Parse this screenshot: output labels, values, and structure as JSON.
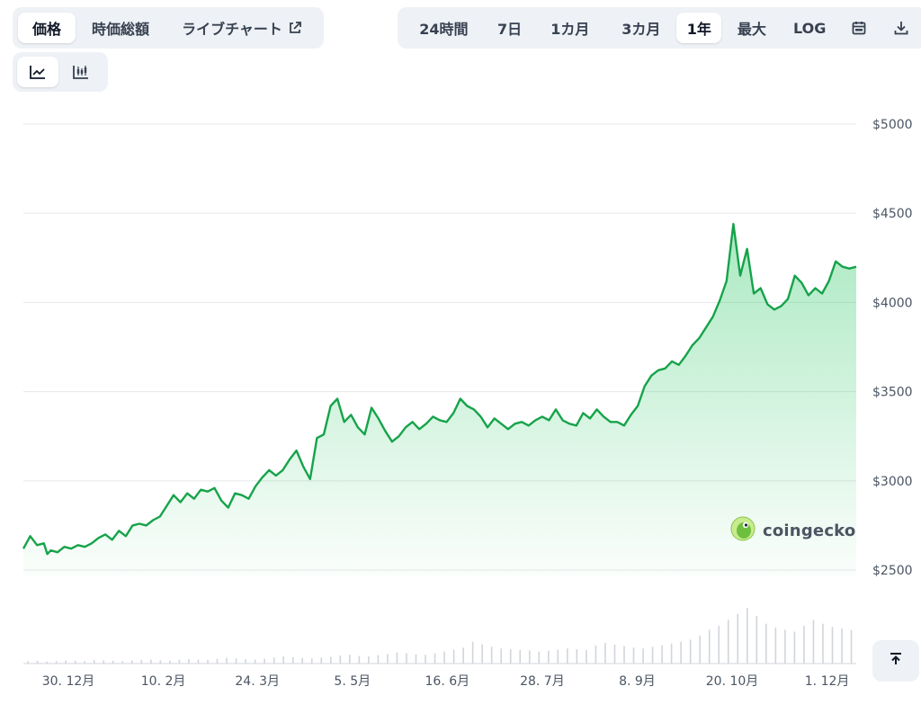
{
  "tabs": [
    {
      "label": "価格",
      "active": true
    },
    {
      "label": "時価総額",
      "active": false
    },
    {
      "label": "ライブチャート",
      "active": false
    }
  ],
  "ranges": [
    {
      "label": "24時間",
      "active": false
    },
    {
      "label": "7日",
      "active": false
    },
    {
      "label": "1カ月",
      "active": false
    },
    {
      "label": "3カ月",
      "active": false
    },
    {
      "label": "1年",
      "active": true
    },
    {
      "label": "最大",
      "active": false
    },
    {
      "label": "LOG",
      "active": false
    }
  ],
  "icons": {
    "external": "external-link-icon",
    "calendar": "calendar-icon",
    "download": "download-icon",
    "line": "line-chart-icon",
    "candle": "candlestick-icon",
    "scroll_top": "scroll-to-top-icon",
    "logo": "coingecko-logo-icon"
  },
  "watermark": "coingecko",
  "colors": {
    "line": "#16a34a",
    "fill": "#22c55e",
    "volume": "#d1d5db",
    "grid": "#e5e7eb"
  },
  "chart_data": {
    "type": "area",
    "title": "",
    "xlabel": "",
    "ylabel": "",
    "y_tick_labels": [
      "$2500",
      "$3000",
      "$3500",
      "$4000",
      "$4500",
      "$5000"
    ],
    "y_ticks": [
      2500,
      3000,
      3500,
      4000,
      4500,
      5000
    ],
    "ylim": [
      2470,
      5040
    ],
    "x_tick_labels": [
      "30. 12月",
      "10. 2月",
      "24. 3月",
      "5. 5月",
      "16. 6月",
      "28. 7月",
      "8. 9月",
      "20. 10月",
      "1. 12月"
    ],
    "x_tick_positions": [
      0.054,
      0.168,
      0.281,
      0.395,
      0.509,
      0.623,
      0.737,
      0.851,
      0.965
    ],
    "grid": true,
    "legend": "none",
    "series": [
      {
        "values": [
          [
            0,
            2620
          ],
          [
            0.01,
            2690
          ],
          [
            0.02,
            2640
          ],
          [
            0.03,
            2650
          ],
          [
            0.035,
            2590
          ],
          [
            0.04,
            2610
          ],
          [
            0.05,
            2600
          ],
          [
            0.06,
            2630
          ],
          [
            0.07,
            2620
          ],
          [
            0.08,
            2640
          ],
          [
            0.09,
            2630
          ],
          [
            0.1,
            2650
          ],
          [
            0.11,
            2680
          ],
          [
            0.12,
            2700
          ],
          [
            0.13,
            2670
          ],
          [
            0.14,
            2720
          ],
          [
            0.15,
            2690
          ],
          [
            0.16,
            2750
          ],
          [
            0.17,
            2760
          ],
          [
            0.18,
            2750
          ],
          [
            0.19,
            2780
          ],
          [
            0.2,
            2800
          ],
          [
            0.21,
            2860
          ],
          [
            0.22,
            2920
          ],
          [
            0.23,
            2880
          ],
          [
            0.24,
            2930
          ],
          [
            0.25,
            2900
          ],
          [
            0.26,
            2950
          ],
          [
            0.27,
            2940
          ],
          [
            0.28,
            2960
          ],
          [
            0.29,
            2890
          ],
          [
            0.3,
            2850
          ],
          [
            0.31,
            2930
          ],
          [
            0.32,
            2920
          ],
          [
            0.33,
            2900
          ],
          [
            0.34,
            2970
          ],
          [
            0.35,
            3020
          ],
          [
            0.36,
            3060
          ],
          [
            0.37,
            3030
          ],
          [
            0.38,
            3060
          ],
          [
            0.39,
            3120
          ],
          [
            0.4,
            3170
          ],
          [
            0.41,
            3080
          ],
          [
            0.42,
            3010
          ],
          [
            0.43,
            3240
          ],
          [
            0.44,
            3260
          ],
          [
            0.45,
            3420
          ],
          [
            0.46,
            3460
          ],
          [
            0.47,
            3330
          ],
          [
            0.48,
            3370
          ],
          [
            0.49,
            3300
          ],
          [
            0.5,
            3260
          ],
          [
            0.51,
            3410
          ],
          [
            0.52,
            3350
          ],
          [
            0.53,
            3280
          ],
          [
            0.54,
            3220
          ],
          [
            0.55,
            3250
          ],
          [
            0.56,
            3300
          ],
          [
            0.57,
            3330
          ],
          [
            0.58,
            3290
          ],
          [
            0.59,
            3320
          ],
          [
            0.6,
            3360
          ],
          [
            0.61,
            3340
          ],
          [
            0.62,
            3330
          ],
          [
            0.63,
            3380
          ],
          [
            0.64,
            3460
          ],
          [
            0.65,
            3420
          ],
          [
            0.66,
            3400
          ],
          [
            0.67,
            3360
          ],
          [
            0.68,
            3300
          ],
          [
            0.69,
            3350
          ],
          [
            0.7,
            3320
          ],
          [
            0.71,
            3290
          ],
          [
            0.72,
            3320
          ],
          [
            0.73,
            3330
          ],
          [
            0.74,
            3310
          ],
          [
            0.75,
            3340
          ],
          [
            0.76,
            3360
          ],
          [
            0.77,
            3340
          ],
          [
            0.78,
            3400
          ],
          [
            0.79,
            3340
          ],
          [
            0.8,
            3320
          ],
          [
            0.81,
            3310
          ],
          [
            0.82,
            3380
          ],
          [
            0.83,
            3350
          ],
          [
            0.84,
            3400
          ],
          [
            0.85,
            3360
          ],
          [
            0.86,
            3330
          ],
          [
            0.87,
            3330
          ],
          [
            0.88,
            3310
          ],
          [
            0.89,
            3370
          ],
          [
            0.9,
            3420
          ],
          [
            0.91,
            3530
          ],
          [
            0.92,
            3590
          ],
          [
            0.93,
            3620
          ],
          [
            0.94,
            3630
          ],
          [
            0.95,
            3670
          ],
          [
            0.96,
            3650
          ],
          [
            0.97,
            3700
          ],
          [
            0.98,
            3760
          ],
          [
            0.99,
            3800
          ],
          [
            1.0,
            3860
          ],
          [
            1.01,
            3920
          ],
          [
            1.02,
            4010
          ],
          [
            1.03,
            4120
          ],
          [
            1.04,
            4440
          ],
          [
            1.05,
            4150
          ],
          [
            1.06,
            4300
          ],
          [
            1.07,
            4050
          ],
          [
            1.08,
            4080
          ],
          [
            1.09,
            3990
          ],
          [
            1.1,
            3960
          ],
          [
            1.11,
            3980
          ],
          [
            1.12,
            4020
          ],
          [
            1.13,
            4150
          ],
          [
            1.14,
            4110
          ],
          [
            1.15,
            4040
          ],
          [
            1.16,
            4080
          ],
          [
            1.17,
            4050
          ],
          [
            1.18,
            4120
          ],
          [
            1.19,
            4230
          ],
          [
            1.2,
            4200
          ],
          [
            1.21,
            4190
          ],
          [
            1.22,
            4200
          ]
        ]
      }
    ],
    "volume": [
      6,
      7,
      5,
      6,
      8,
      7,
      6,
      9,
      8,
      7,
      6,
      8,
      9,
      10,
      8,
      7,
      9,
      11,
      10,
      9,
      12,
      14,
      13,
      11,
      10,
      12,
      15,
      18,
      16,
      14,
      13,
      15,
      17,
      20,
      22,
      19,
      18,
      21,
      24,
      28,
      26,
      23,
      22,
      25,
      30,
      35,
      40,
      55,
      48,
      42,
      38,
      36,
      34,
      33,
      30,
      32,
      35,
      38,
      36,
      34,
      45,
      52,
      48,
      44,
      40,
      38,
      42,
      46,
      50,
      55,
      60,
      70,
      85,
      95,
      110,
      125,
      140,
      120,
      100,
      90,
      85,
      80,
      95,
      110,
      100,
      92,
      88,
      84
    ]
  }
}
